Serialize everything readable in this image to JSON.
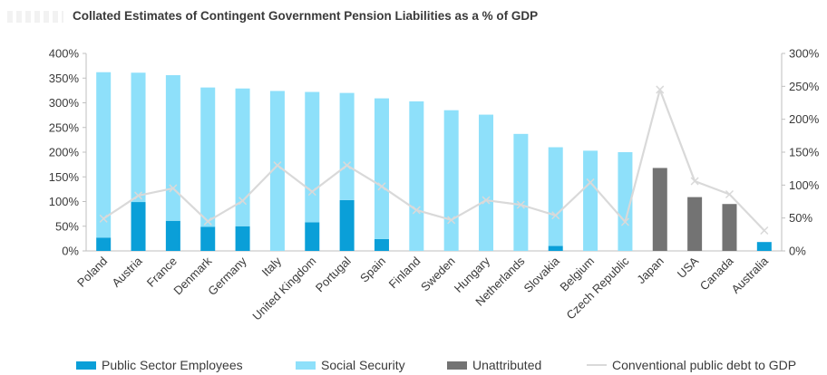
{
  "chart_data": {
    "type": "bar",
    "title": "Collated Estimates of Contingent Government Pension Liabilities as a % of GDP",
    "categories": [
      "Poland",
      "Austria",
      "France",
      "Denmark",
      "Germany",
      "Italy",
      "United Kingdom",
      "Portugal",
      "Spain",
      "Finland",
      "Sweden",
      "Hungary",
      "Netherlands",
      "Slovakia",
      "Belgium",
      "Czech Republic",
      "Japan",
      "USA",
      "Canada",
      "Australia"
    ],
    "stacked": true,
    "series": [
      {
        "name": "Public Sector Employees",
        "color": "#0a9fd8",
        "axis": "left",
        "values": [
          27,
          99,
          61,
          49,
          50,
          0,
          58,
          103,
          24,
          0,
          0,
          0,
          0,
          10,
          0,
          0,
          0,
          0,
          0,
          18
        ]
      },
      {
        "name": "Social Security",
        "color": "#8ee0fa",
        "axis": "left",
        "values": [
          335,
          262,
          295,
          282,
          279,
          324,
          264,
          217,
          285,
          303,
          285,
          276,
          237,
          200,
          203,
          200,
          0,
          0,
          0,
          0
        ]
      },
      {
        "name": "Unattributed",
        "color": "#737373",
        "axis": "left",
        "values": [
          0,
          0,
          0,
          0,
          0,
          0,
          0,
          0,
          0,
          0,
          0,
          0,
          0,
          0,
          0,
          0,
          168,
          109,
          95,
          0
        ]
      },
      {
        "name": "Conventional public debt to GDP",
        "color": "#d9d9d9",
        "type": "line",
        "axis": "right",
        "values": [
          49,
          84,
          95,
          45,
          76,
          130,
          90,
          130,
          98,
          62,
          47,
          77,
          70,
          54,
          104,
          44,
          245,
          106,
          86,
          31
        ]
      }
    ],
    "y_left": {
      "min": 0,
      "max": 400,
      "step": 50,
      "ticks": [
        "0%",
        "50%",
        "100%",
        "150%",
        "200%",
        "250%",
        "300%",
        "350%",
        "400%"
      ]
    },
    "y_right": {
      "min": 0,
      "max": 300,
      "step": 50,
      "ticks": [
        "0%",
        "50%",
        "100%",
        "150%",
        "200%",
        "250%",
        "300%"
      ]
    },
    "legend_position": "bottom",
    "grid": false
  }
}
